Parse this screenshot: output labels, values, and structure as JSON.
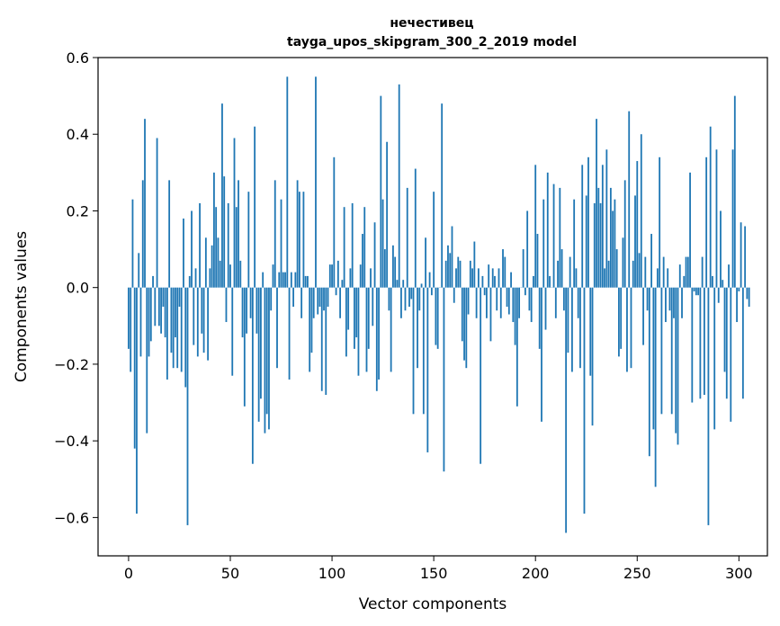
{
  "chart_data": {
    "type": "bar",
    "title": "нечестивец",
    "subtitle": "tayga_upos_skipgram_300_2_2019 model",
    "xlabel": "Vector components",
    "ylabel": "Components values",
    "xlim": [
      -15,
      314
    ],
    "ylim": [
      -0.7,
      0.6
    ],
    "xticks": [
      0,
      50,
      100,
      150,
      200,
      250,
      300
    ],
    "yticks": [
      -0.6,
      -0.4,
      -0.2,
      0.0,
      0.2,
      0.4,
      0.6
    ],
    "ytick_labels": [
      "−0.6",
      "−0.4",
      "−0.2",
      "0.0",
      "0.2",
      "0.4",
      "0.6"
    ],
    "bar_color": "#1f77b4",
    "grid": false,
    "values": [
      -0.16,
      -0.22,
      0.23,
      -0.42,
      -0.59,
      0.09,
      -0.18,
      0.28,
      0.44,
      -0.38,
      -0.18,
      -0.14,
      0.03,
      -0.1,
      0.39,
      -0.1,
      -0.12,
      -0.05,
      -0.13,
      -0.24,
      0.28,
      -0.17,
      -0.21,
      -0.13,
      -0.21,
      -0.05,
      -0.22,
      0.18,
      -0.26,
      -0.62,
      0.03,
      0.2,
      -0.15,
      0.05,
      -0.18,
      0.22,
      -0.12,
      -0.17,
      0.13,
      -0.19,
      0.05,
      0.11,
      0.3,
      0.21,
      0.13,
      0.07,
      0.48,
      0.29,
      -0.09,
      0.22,
      0.06,
      -0.23,
      0.39,
      0.21,
      0.28,
      0.07,
      -0.13,
      -0.31,
      -0.12,
      0.25,
      -0.08,
      -0.46,
      0.42,
      -0.12,
      -0.35,
      -0.29,
      0.04,
      -0.38,
      -0.33,
      -0.37,
      -0.06,
      0.06,
      0.28,
      -0.21,
      0.04,
      0.23,
      0.04,
      0.04,
      0.55,
      -0.24,
      0.04,
      -0.05,
      0.04,
      0.28,
      0.25,
      -0.08,
      0.25,
      0.03,
      0.03,
      -0.22,
      -0.17,
      -0.08,
      0.55,
      -0.07,
      -0.05,
      -0.27,
      -0.06,
      -0.28,
      -0.05,
      0.06,
      0.06,
      0.34,
      -0.02,
      0.07,
      -0.08,
      0.02,
      0.21,
      -0.18,
      -0.11,
      0.05,
      0.22,
      -0.16,
      -0.13,
      -0.23,
      0.06,
      0.14,
      0.21,
      -0.22,
      -0.16,
      0.05,
      -0.1,
      0.17,
      -0.27,
      -0.24,
      0.5,
      0.23,
      0.1,
      0.38,
      -0.06,
      -0.22,
      0.11,
      0.08,
      0.02,
      0.53,
      -0.08,
      0.02,
      -0.06,
      0.26,
      -0.05,
      -0.03,
      -0.33,
      0.31,
      -0.21,
      -0.06,
      0.01,
      -0.33,
      0.13,
      -0.43,
      0.04,
      -0.02,
      0.25,
      -0.15,
      -0.16,
      0.0,
      0.48,
      -0.48,
      0.07,
      0.11,
      0.09,
      0.16,
      -0.04,
      0.05,
      0.08,
      0.07,
      -0.14,
      -0.19,
      -0.21,
      -0.07,
      0.07,
      0.05,
      0.12,
      -0.08,
      0.05,
      -0.46,
      0.03,
      -0.02,
      -0.08,
      0.06,
      -0.14,
      0.05,
      0.03,
      -0.06,
      0.05,
      -0.08,
      0.1,
      0.08,
      -0.05,
      -0.07,
      0.04,
      -0.09,
      -0.15,
      -0.31,
      -0.08,
      0.0,
      0.1,
      -0.02,
      0.2,
      -0.06,
      -0.09,
      0.03,
      0.32,
      0.14,
      -0.16,
      -0.35,
      0.23,
      -0.11,
      0.3,
      0.03,
      0.0,
      0.27,
      -0.08,
      0.07,
      0.26,
      0.1,
      -0.06,
      -0.64,
      -0.17,
      0.08,
      -0.22,
      0.23,
      0.05,
      -0.08,
      -0.21,
      0.32,
      -0.59,
      0.24,
      0.34,
      -0.23,
      -0.36,
      0.22,
      0.44,
      0.26,
      0.22,
      0.32,
      0.05,
      0.36,
      0.07,
      0.26,
      0.2,
      0.23,
      0.1,
      -0.18,
      -0.16,
      0.13,
      0.28,
      -0.22,
      0.46,
      -0.21,
      0.07,
      0.24,
      0.33,
      0.09,
      0.4,
      -0.15,
      0.08,
      -0.06,
      -0.44,
      0.14,
      -0.37,
      -0.52,
      0.05,
      0.34,
      -0.33,
      0.08,
      -0.09,
      0.05,
      -0.06,
      -0.33,
      -0.08,
      -0.38,
      -0.41,
      0.06,
      -0.08,
      0.03,
      0.08,
      0.08,
      0.3,
      -0.3,
      -0.01,
      -0.02,
      -0.02,
      -0.29,
      0.08,
      -0.28,
      0.34,
      -0.62,
      0.42,
      0.03,
      -0.37,
      0.36,
      -0.04,
      0.2,
      0.02,
      -0.22,
      -0.29,
      0.06,
      -0.35,
      0.36,
      0.5,
      -0.09,
      -0.01,
      0.17,
      -0.29,
      0.16,
      -0.03,
      -0.05
    ]
  }
}
